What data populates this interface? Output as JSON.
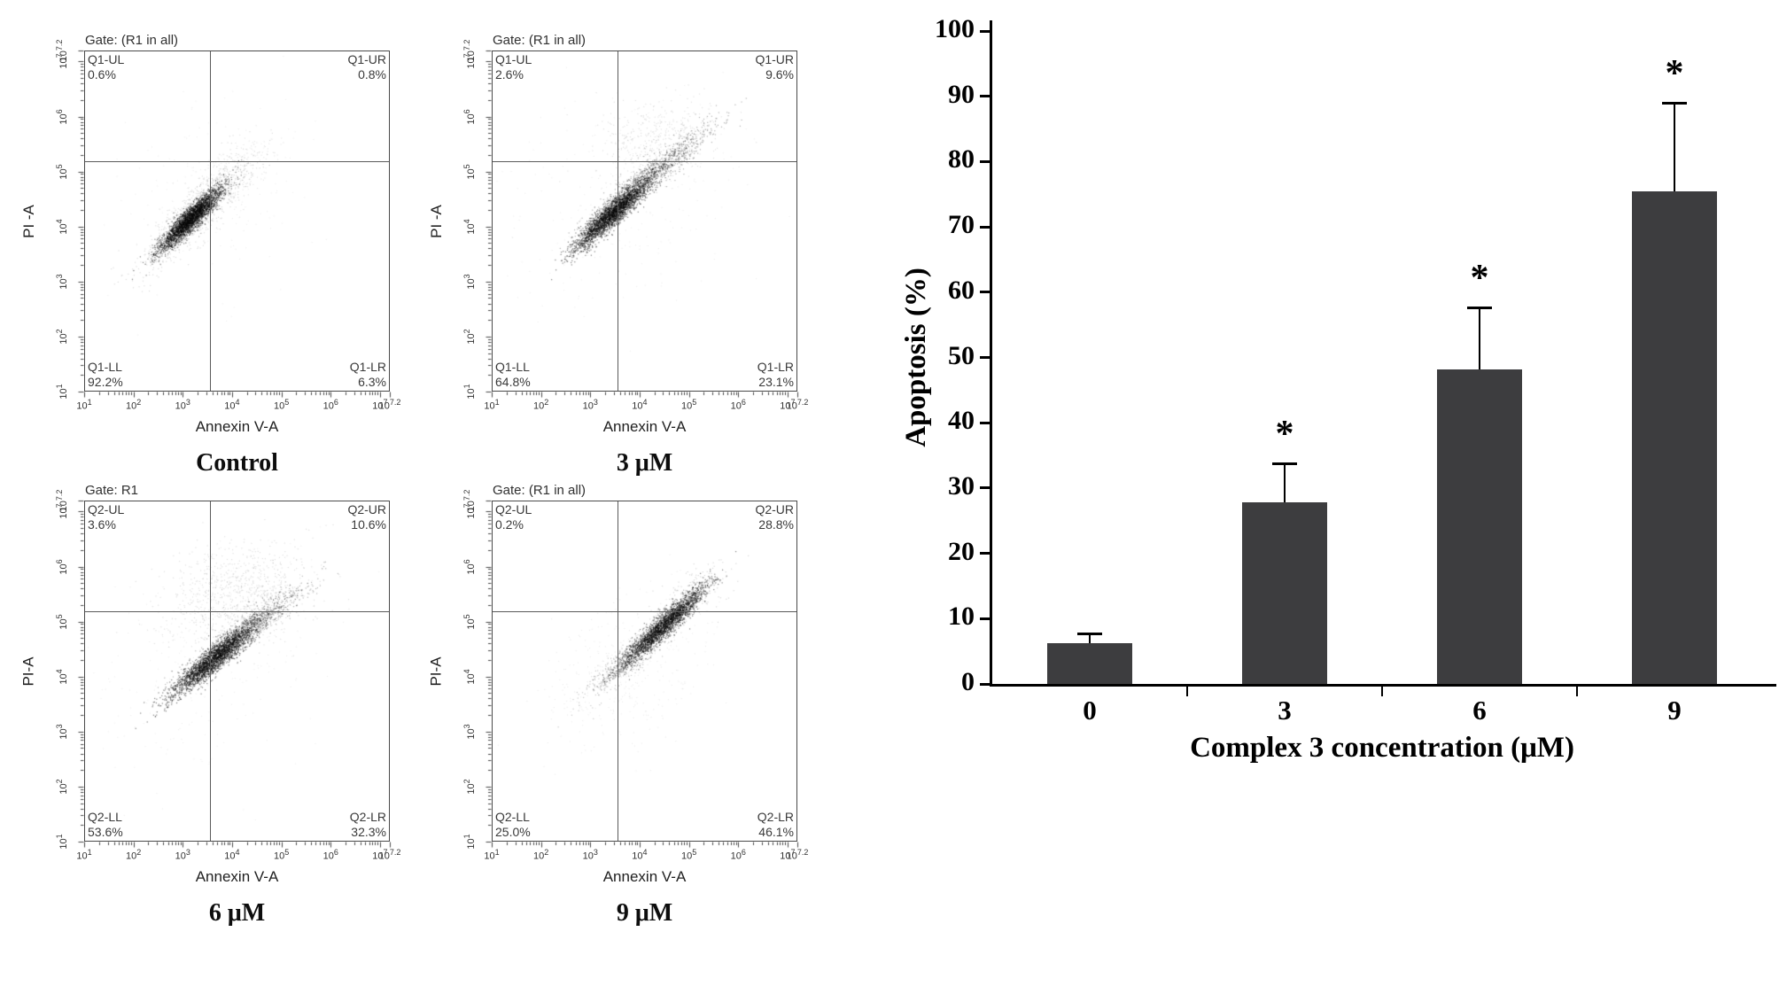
{
  "flow_axis": {
    "base": "10",
    "min": 1,
    "max": 7.2,
    "ticks": [
      "1",
      "2",
      "3",
      "4",
      "5",
      "6",
      "7",
      "7.2"
    ]
  },
  "chart_data": [
    {
      "type": "scatter",
      "subtype": "flow-cytometry-dot-plot",
      "title": "Control",
      "gate": "Gate: (R1 in all)",
      "xlabel": "Annexin V-A",
      "ylabel": "PI -A",
      "x_scale": "log10",
      "y_scale": "log10",
      "xlim_log": [
        1,
        7.2
      ],
      "ylim_log": [
        1,
        7.2
      ],
      "crosshair_log": [
        3.55,
        5.2
      ],
      "quadrants": [
        {
          "pos": "upper-left",
          "name": "Q1-UL",
          "pct": "0.6%"
        },
        {
          "pos": "upper-right",
          "name": "Q1-UR",
          "pct": "0.8%"
        },
        {
          "pos": "lower-left",
          "name": "Q1-LL",
          "pct": "92.2%"
        },
        {
          "pos": "lower-right",
          "name": "Q1-LR",
          "pct": "6.3%"
        }
      ],
      "clusters": [
        {
          "center": [
            3.15,
            4.15
          ],
          "major": 0.42,
          "minor": 0.085,
          "angle_deg": 42,
          "n": 3200,
          "alpha": 0.5
        },
        {
          "center": [
            3.3,
            4.3
          ],
          "major": 0.75,
          "minor": 0.2,
          "angle_deg": 42,
          "n": 900,
          "alpha": 0.14
        },
        {
          "center": [
            4.0,
            4.95
          ],
          "major": 0.55,
          "minor": 0.22,
          "angle_deg": 35,
          "n": 220,
          "alpha": 0.1
        },
        {
          "center": [
            3.7,
            4.6
          ],
          "major": 1.2,
          "minor": 0.85,
          "angle_deg": 35,
          "n": 160,
          "alpha": 0.07
        }
      ]
    },
    {
      "type": "scatter",
      "subtype": "flow-cytometry-dot-plot",
      "title": "3 μM",
      "gate": "Gate: (R1 in all)",
      "xlabel": "Annexin V-A",
      "ylabel": "PI -A",
      "x_scale": "log10",
      "y_scale": "log10",
      "xlim_log": [
        1,
        7.2
      ],
      "ylim_log": [
        1,
        7.2
      ],
      "crosshair_log": [
        3.55,
        5.2
      ],
      "quadrants": [
        {
          "pos": "upper-left",
          "name": "Q1-UL",
          "pct": "2.6%"
        },
        {
          "pos": "upper-right",
          "name": "Q1-UR",
          "pct": "9.6%"
        },
        {
          "pos": "lower-left",
          "name": "Q1-LL",
          "pct": "64.8%"
        },
        {
          "pos": "lower-right",
          "name": "Q1-LR",
          "pct": "23.1%"
        }
      ],
      "clusters": [
        {
          "center": [
            3.45,
            4.25
          ],
          "major": 0.5,
          "minor": 0.095,
          "angle_deg": 40,
          "n": 3000,
          "alpha": 0.5
        },
        {
          "center": [
            4.25,
            4.95
          ],
          "major": 0.75,
          "minor": 0.12,
          "angle_deg": 36,
          "n": 1100,
          "alpha": 0.3
        },
        {
          "center": [
            4.35,
            5.55
          ],
          "major": 0.6,
          "minor": 0.35,
          "angle_deg": 15,
          "n": 450,
          "alpha": 0.12
        },
        {
          "center": [
            3.7,
            4.5
          ],
          "major": 1.25,
          "minor": 0.95,
          "angle_deg": 35,
          "n": 260,
          "alpha": 0.07
        }
      ]
    },
    {
      "type": "scatter",
      "subtype": "flow-cytometry-dot-plot",
      "title": "6 μM",
      "gate": "Gate: R1",
      "xlabel": "Annexin V-A",
      "ylabel": "PI-A",
      "x_scale": "log10",
      "y_scale": "log10",
      "xlim_log": [
        1,
        7.2
      ],
      "ylim_log": [
        1,
        7.2
      ],
      "crosshair_log": [
        3.55,
        5.2
      ],
      "quadrants": [
        {
          "pos": "upper-left",
          "name": "Q2-UL",
          "pct": "3.6%"
        },
        {
          "pos": "upper-right",
          "name": "Q2-UR",
          "pct": "10.6%"
        },
        {
          "pos": "lower-left",
          "name": "Q2-LL",
          "pct": "53.6%"
        },
        {
          "pos": "lower-right",
          "name": "Q2-LR",
          "pct": "32.3%"
        }
      ],
      "clusters": [
        {
          "center": [
            3.65,
            4.35
          ],
          "major": 0.55,
          "minor": 0.1,
          "angle_deg": 37,
          "n": 2900,
          "alpha": 0.5
        },
        {
          "center": [
            4.35,
            4.9
          ],
          "major": 0.7,
          "minor": 0.12,
          "angle_deg": 33,
          "n": 900,
          "alpha": 0.28
        },
        {
          "center": [
            4.15,
            5.5
          ],
          "major": 0.75,
          "minor": 0.45,
          "angle_deg": 12,
          "n": 850,
          "alpha": 0.13
        },
        {
          "center": [
            3.5,
            4.35
          ],
          "major": 1.25,
          "minor": 0.95,
          "angle_deg": 35,
          "n": 280,
          "alpha": 0.07
        }
      ]
    },
    {
      "type": "scatter",
      "subtype": "flow-cytometry-dot-plot",
      "title": "9 μM",
      "gate": "Gate: (R1 in all)",
      "xlabel": "Annexin V-A",
      "ylabel": "PI-A",
      "x_scale": "log10",
      "y_scale": "log10",
      "xlim_log": [
        1,
        7.2
      ],
      "ylim_log": [
        1,
        7.2
      ],
      "crosshair_log": [
        3.55,
        5.2
      ],
      "quadrants": [
        {
          "pos": "upper-left",
          "name": "Q2-UL",
          "pct": "0.2%"
        },
        {
          "pos": "upper-right",
          "name": "Q2-UR",
          "pct": "28.8%"
        },
        {
          "pos": "lower-left",
          "name": "Q2-LL",
          "pct": "25.0%"
        },
        {
          "pos": "lower-right",
          "name": "Q2-LR",
          "pct": "46.1%"
        }
      ],
      "clusters": [
        {
          "center": [
            4.5,
            4.95
          ],
          "major": 0.55,
          "minor": 0.09,
          "angle_deg": 40,
          "n": 2600,
          "alpha": 0.5
        },
        {
          "center": [
            3.85,
            4.4
          ],
          "major": 0.6,
          "minor": 0.12,
          "angle_deg": 40,
          "n": 700,
          "alpha": 0.22
        },
        {
          "center": [
            3.6,
            4.15
          ],
          "major": 0.95,
          "minor": 0.6,
          "angle_deg": 30,
          "n": 380,
          "alpha": 0.08
        },
        {
          "center": [
            5.0,
            5.45
          ],
          "major": 0.45,
          "minor": 0.18,
          "angle_deg": 35,
          "n": 260,
          "alpha": 0.16
        }
      ]
    },
    {
      "type": "bar",
      "title": "",
      "xlabel": "Complex 3 concentration (μM)",
      "ylabel": "Apoptosis (%)",
      "categories": [
        "0",
        "3",
        "6",
        "9"
      ],
      "values": [
        6.3,
        27.8,
        48.2,
        75.5
      ],
      "errors": [
        1.5,
        6.0,
        9.5,
        13.5
      ],
      "sig": [
        "",
        "*",
        "*",
        "*"
      ],
      "ylim": [
        0,
        100
      ],
      "ytick_step": 10,
      "bar_color": "#3d3d3f",
      "axis_color": "#000000",
      "grid": false,
      "legend_position": "none"
    }
  ]
}
